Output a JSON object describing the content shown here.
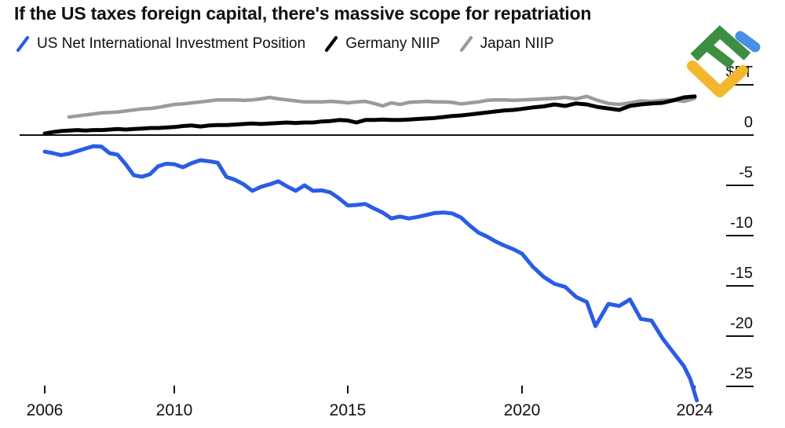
{
  "title": "If the US taxes foreign capital, there's massive scope for repatriation",
  "legend": [
    {
      "label": "US Net International Investment Position",
      "color": "#2a5ce6",
      "icon": "line-swatch-icon"
    },
    {
      "label": "Germany NIIP",
      "color": "#000000",
      "icon": "line-swatch-icon"
    },
    {
      "label": "Japan NIIP",
      "color": "#9b9b9b",
      "icon": "line-swatch-icon"
    }
  ],
  "logo": {
    "icon": "litefinance-logo",
    "colors": {
      "green": "#3e8e41",
      "yellow": "#f2b72e",
      "blue": "#4a90e2"
    }
  },
  "chart_data": {
    "type": "line",
    "title": "If the US taxes foreign capital, there's massive scope for repatriation",
    "unit": "trillions of US dollars",
    "xlabel": "",
    "ylabel": "$T",
    "xlim": [
      2006,
      2024.1
    ],
    "ylim": [
      -27.5,
      5
    ],
    "grid": "zero-line-only",
    "legend_position": "top",
    "x_ticks": [
      2006,
      2010,
      2015,
      2020,
      2024
    ],
    "x_tick_labels": [
      "2006",
      "2010",
      "2015",
      "2020",
      "2024"
    ],
    "y_ticks": [
      5,
      0,
      -5,
      -10,
      -15,
      -20,
      -25
    ],
    "y_tick_labels": [
      "$5T",
      "0",
      "-5",
      "-10",
      "-15",
      "-20",
      "-25"
    ],
    "axis_color": "#111111",
    "series": [
      {
        "name": "Japan NIIP",
        "color": "#9b9b9b",
        "width": 4.5,
        "points": [
          [
            2006.75,
            1.8
          ],
          [
            2007,
            1.9
          ],
          [
            2007.25,
            2.0
          ],
          [
            2007.5,
            2.1
          ],
          [
            2007.75,
            2.2
          ],
          [
            2008,
            2.25
          ],
          [
            2008.25,
            2.3
          ],
          [
            2008.5,
            2.4
          ],
          [
            2008.75,
            2.5
          ],
          [
            2009,
            2.6
          ],
          [
            2009.25,
            2.65
          ],
          [
            2009.5,
            2.75
          ],
          [
            2009.75,
            2.9
          ],
          [
            2010,
            3.05
          ],
          [
            2010.25,
            3.1
          ],
          [
            2010.5,
            3.2
          ],
          [
            2010.75,
            3.3
          ],
          [
            2011,
            3.4
          ],
          [
            2011.25,
            3.5
          ],
          [
            2011.5,
            3.5
          ],
          [
            2011.75,
            3.5
          ],
          [
            2012,
            3.45
          ],
          [
            2012.25,
            3.5
          ],
          [
            2012.5,
            3.6
          ],
          [
            2012.75,
            3.75
          ],
          [
            2013,
            3.6
          ],
          [
            2013.25,
            3.5
          ],
          [
            2013.5,
            3.4
          ],
          [
            2013.75,
            3.3
          ],
          [
            2014,
            3.3
          ],
          [
            2014.25,
            3.3
          ],
          [
            2014.5,
            3.35
          ],
          [
            2014.75,
            3.3
          ],
          [
            2015,
            3.2
          ],
          [
            2015.25,
            3.3
          ],
          [
            2015.5,
            3.35
          ],
          [
            2015.75,
            3.15
          ],
          [
            2016,
            2.9
          ],
          [
            2016.25,
            3.2
          ],
          [
            2016.5,
            3.05
          ],
          [
            2016.75,
            3.25
          ],
          [
            2017,
            3.3
          ],
          [
            2017.25,
            3.35
          ],
          [
            2017.5,
            3.3
          ],
          [
            2017.75,
            3.3
          ],
          [
            2018,
            3.25
          ],
          [
            2018.25,
            3.1
          ],
          [
            2018.5,
            3.2
          ],
          [
            2018.75,
            3.3
          ],
          [
            2019,
            3.45
          ],
          [
            2019.25,
            3.5
          ],
          [
            2019.5,
            3.5
          ],
          [
            2019.75,
            3.45
          ],
          [
            2020,
            3.5
          ],
          [
            2020.25,
            3.55
          ],
          [
            2020.5,
            3.6
          ],
          [
            2020.75,
            3.65
          ],
          [
            2021,
            3.75
          ],
          [
            2021.25,
            3.6
          ],
          [
            2021.5,
            3.85
          ],
          [
            2021.75,
            3.45
          ],
          [
            2022,
            3.15
          ],
          [
            2022.25,
            3.05
          ],
          [
            2022.5,
            3.2
          ],
          [
            2022.75,
            3.4
          ],
          [
            2023,
            3.35
          ],
          [
            2023.25,
            3.45
          ],
          [
            2023.5,
            3.5
          ],
          [
            2023.75,
            3.35
          ],
          [
            2024,
            3.65
          ]
        ]
      },
      {
        "name": "Germany NIIP",
        "color": "#000000",
        "width": 5,
        "points": [
          [
            2006,
            0.15
          ],
          [
            2006.25,
            0.3
          ],
          [
            2006.5,
            0.4
          ],
          [
            2006.75,
            0.45
          ],
          [
            2007,
            0.5
          ],
          [
            2007.25,
            0.45
          ],
          [
            2007.5,
            0.5
          ],
          [
            2007.75,
            0.5
          ],
          [
            2008,
            0.55
          ],
          [
            2008.25,
            0.6
          ],
          [
            2008.5,
            0.55
          ],
          [
            2008.75,
            0.6
          ],
          [
            2009,
            0.65
          ],
          [
            2009.25,
            0.7
          ],
          [
            2009.5,
            0.7
          ],
          [
            2009.75,
            0.75
          ],
          [
            2010,
            0.8
          ],
          [
            2010.25,
            0.9
          ],
          [
            2010.5,
            0.95
          ],
          [
            2010.75,
            0.85
          ],
          [
            2011,
            0.95
          ],
          [
            2011.25,
            1.0
          ],
          [
            2011.5,
            1.0
          ],
          [
            2011.75,
            1.05
          ],
          [
            2012,
            1.1
          ],
          [
            2012.25,
            1.15
          ],
          [
            2012.5,
            1.1
          ],
          [
            2012.75,
            1.15
          ],
          [
            2013,
            1.2
          ],
          [
            2013.25,
            1.25
          ],
          [
            2013.5,
            1.2
          ],
          [
            2013.75,
            1.25
          ],
          [
            2014,
            1.25
          ],
          [
            2014.25,
            1.35
          ],
          [
            2014.5,
            1.4
          ],
          [
            2014.75,
            1.5
          ],
          [
            2015,
            1.45
          ],
          [
            2015.25,
            1.25
          ],
          [
            2015.5,
            1.5
          ],
          [
            2015.75,
            1.5
          ],
          [
            2016,
            1.55
          ],
          [
            2016.25,
            1.5
          ],
          [
            2016.5,
            1.5
          ],
          [
            2016.75,
            1.55
          ],
          [
            2017,
            1.6
          ],
          [
            2017.25,
            1.65
          ],
          [
            2017.5,
            1.7
          ],
          [
            2017.75,
            1.8
          ],
          [
            2018,
            1.9
          ],
          [
            2018.25,
            1.95
          ],
          [
            2018.5,
            2.05
          ],
          [
            2018.75,
            2.15
          ],
          [
            2019,
            2.25
          ],
          [
            2019.25,
            2.35
          ],
          [
            2019.5,
            2.45
          ],
          [
            2019.75,
            2.5
          ],
          [
            2020,
            2.6
          ],
          [
            2020.25,
            2.75
          ],
          [
            2020.5,
            2.85
          ],
          [
            2020.75,
            3.05
          ],
          [
            2021,
            2.9
          ],
          [
            2021.25,
            3.15
          ],
          [
            2021.5,
            3.05
          ],
          [
            2021.75,
            2.8
          ],
          [
            2022,
            2.65
          ],
          [
            2022.25,
            2.5
          ],
          [
            2022.5,
            2.9
          ],
          [
            2022.75,
            3.05
          ],
          [
            2023,
            3.15
          ],
          [
            2023.25,
            3.2
          ],
          [
            2023.5,
            3.45
          ],
          [
            2023.75,
            3.75
          ],
          [
            2024,
            3.85
          ]
        ]
      },
      {
        "name": "US Net International Investment Position",
        "color": "#2a5ce6",
        "width": 5,
        "points": [
          [
            2006,
            -1.65
          ],
          [
            2006.25,
            -1.8
          ],
          [
            2006.5,
            -2.0
          ],
          [
            2006.75,
            -1.85
          ],
          [
            2007,
            -1.6
          ],
          [
            2007.25,
            -1.35
          ],
          [
            2007.5,
            -1.1
          ],
          [
            2007.75,
            -1.15
          ],
          [
            2008,
            -1.8
          ],
          [
            2008.25,
            -1.95
          ],
          [
            2008.5,
            -2.9
          ],
          [
            2008.75,
            -4.0
          ],
          [
            2009,
            -4.15
          ],
          [
            2009.25,
            -3.9
          ],
          [
            2009.5,
            -3.1
          ],
          [
            2009.75,
            -2.85
          ],
          [
            2010,
            -2.9
          ],
          [
            2010.25,
            -3.2
          ],
          [
            2010.5,
            -2.8
          ],
          [
            2010.75,
            -2.5
          ],
          [
            2011,
            -2.6
          ],
          [
            2011.25,
            -2.75
          ],
          [
            2011.5,
            -4.15
          ],
          [
            2011.75,
            -4.45
          ],
          [
            2012,
            -4.9
          ],
          [
            2012.25,
            -5.55
          ],
          [
            2012.5,
            -5.15
          ],
          [
            2012.75,
            -4.9
          ],
          [
            2013,
            -4.6
          ],
          [
            2013.25,
            -5.1
          ],
          [
            2013.5,
            -5.55
          ],
          [
            2013.75,
            -5.0
          ],
          [
            2014,
            -5.55
          ],
          [
            2014.25,
            -5.5
          ],
          [
            2014.5,
            -5.7
          ],
          [
            2014.75,
            -6.3
          ],
          [
            2015,
            -7.0
          ],
          [
            2015.25,
            -6.95
          ],
          [
            2015.5,
            -6.85
          ],
          [
            2015.75,
            -7.3
          ],
          [
            2016,
            -7.7
          ],
          [
            2016.25,
            -8.3
          ],
          [
            2016.5,
            -8.1
          ],
          [
            2016.75,
            -8.3
          ],
          [
            2017,
            -8.15
          ],
          [
            2017.25,
            -7.95
          ],
          [
            2017.5,
            -7.75
          ],
          [
            2017.75,
            -7.7
          ],
          [
            2018,
            -7.8
          ],
          [
            2018.25,
            -8.2
          ],
          [
            2018.5,
            -9.0
          ],
          [
            2018.75,
            -9.7
          ],
          [
            2019,
            -10.1
          ],
          [
            2019.25,
            -10.6
          ],
          [
            2019.5,
            -11.0
          ],
          [
            2019.75,
            -11.35
          ],
          [
            2020,
            -11.8
          ],
          [
            2020.25,
            -13.1
          ],
          [
            2020.5,
            -14.1
          ],
          [
            2020.75,
            -14.8
          ],
          [
            2021,
            -15.1
          ],
          [
            2021.25,
            -16.1
          ],
          [
            2021.5,
            -16.6
          ],
          [
            2021.7,
            -19.0
          ],
          [
            2022,
            -16.8
          ],
          [
            2022.25,
            -17.0
          ],
          [
            2022.5,
            -16.35
          ],
          [
            2022.75,
            -18.3
          ],
          [
            2023,
            -18.45
          ],
          [
            2023.25,
            -20.2
          ],
          [
            2023.5,
            -21.6
          ],
          [
            2023.75,
            -23.0
          ],
          [
            2023.9,
            -24.3
          ],
          [
            2024.05,
            -26.4
          ]
        ]
      }
    ]
  }
}
